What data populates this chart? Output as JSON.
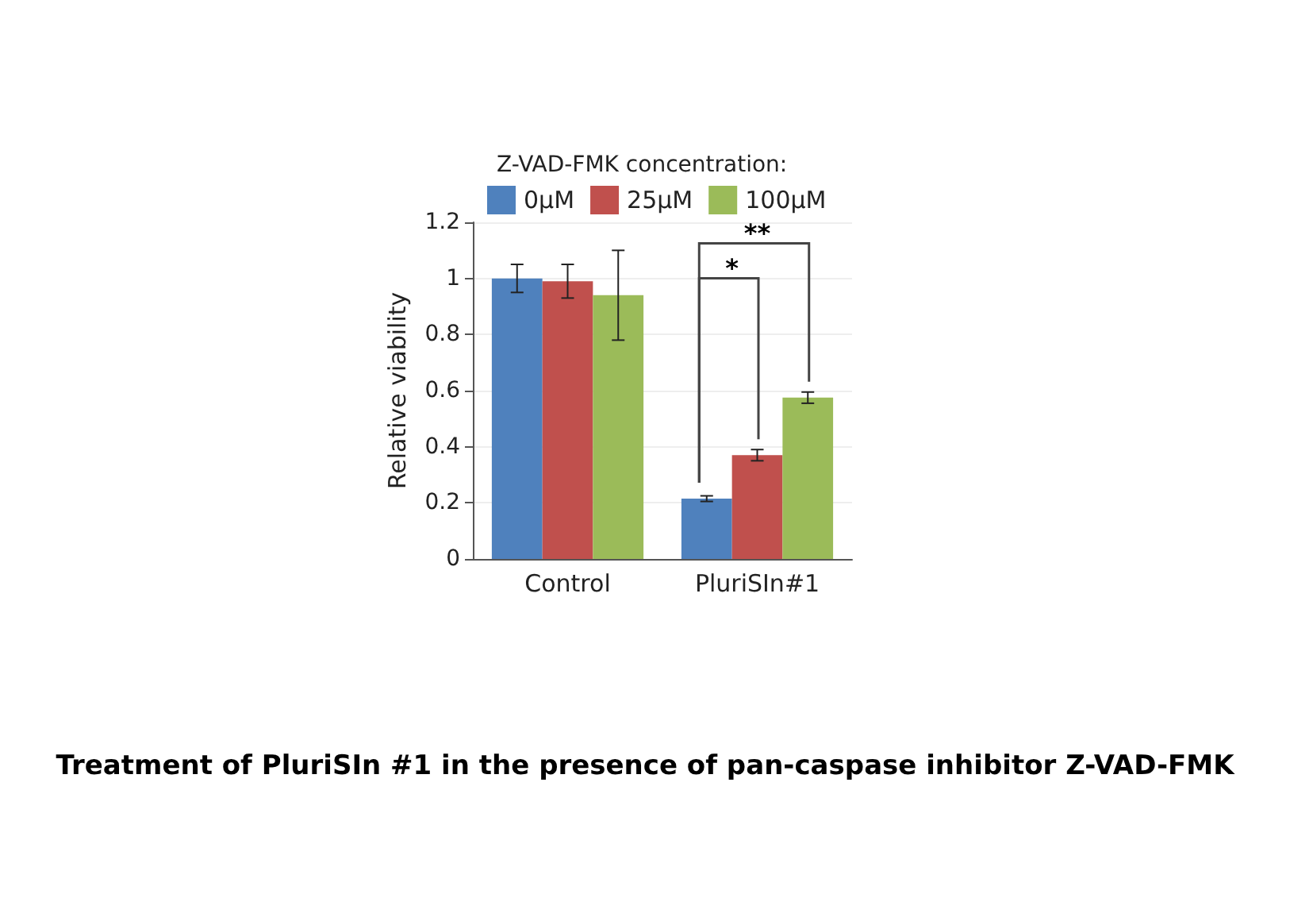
{
  "chart_data": {
    "type": "bar",
    "legend_title": "Z-VAD-FMK concentration:",
    "ylabel": "Relative viability",
    "categories": [
      "Control",
      "PluriSIn#1"
    ],
    "series": [
      {
        "name": "0µM",
        "color": "#4f81bd",
        "values": [
          1.0,
          0.215
        ],
        "errors": [
          0.05,
          0.01
        ]
      },
      {
        "name": "25µM",
        "color": "#c0504d",
        "values": [
          0.99,
          0.37
        ],
        "errors": [
          0.06,
          0.02
        ]
      },
      {
        "name": "100µM",
        "color": "#9bbb59",
        "values": [
          0.94,
          0.575
        ],
        "errors": [
          [
            0.78,
            1.1
          ],
          0.02
        ]
      }
    ],
    "ylim": [
      0,
      1.2
    ],
    "yticks": [
      0,
      0.2,
      0.4,
      0.6,
      0.8,
      1,
      1.2
    ],
    "grid": "y",
    "legend": "top",
    "annotations": [
      "*",
      "**",
      "Treatment of PluriSIn #1 in the presence of pan-caspase inhibitor Z-VAD-FMK"
    ]
  }
}
